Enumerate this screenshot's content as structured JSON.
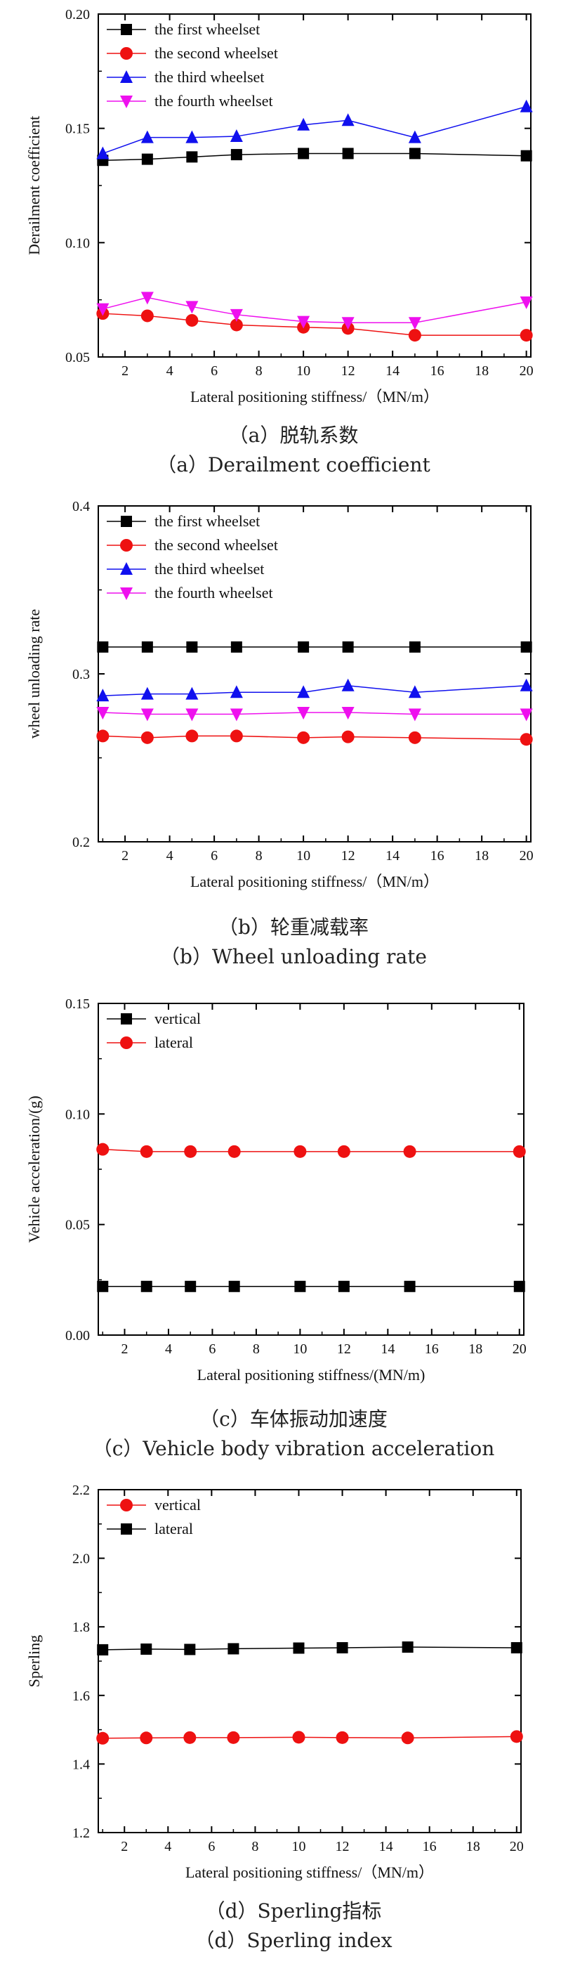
{
  "chart_data": [
    {
      "type": "line",
      "ylabel": "Derailment coefficient",
      "xlabel": "Lateral positioning stiffness/（MN/m）",
      "ylim": [
        0.05,
        0.2
      ],
      "xlim": [
        0.8,
        20.2
      ],
      "xticks": [
        2,
        4,
        6,
        8,
        10,
        12,
        14,
        16,
        18,
        20
      ],
      "yticks": [
        0.05,
        0.1,
        0.15,
        0.2
      ],
      "ytick_labels": [
        "0.05",
        "0.10",
        "0.15",
        "0.20"
      ],
      "x": [
        1,
        3,
        5,
        7,
        10,
        12,
        15,
        20
      ],
      "legend_position": "top-left",
      "series": [
        {
          "name": "the first wheelset",
          "color": "#000000",
          "marker": "square",
          "values": [
            0.136,
            0.1365,
            0.1375,
            0.1385,
            0.139,
            0.139,
            0.139,
            0.138
          ]
        },
        {
          "name": "the second wheelset",
          "color": "#ee1111",
          "marker": "circle",
          "values": [
            0.069,
            0.068,
            0.066,
            0.064,
            0.063,
            0.0625,
            0.0595,
            0.0595
          ]
        },
        {
          "name": "the third wheelset",
          "color": "#1010ee",
          "marker": "triangle-up",
          "values": [
            0.139,
            0.146,
            0.146,
            0.1465,
            0.1515,
            0.1535,
            0.146,
            0.1595
          ]
        },
        {
          "name": "the fourth wheelset",
          "color": "#ee10ee",
          "marker": "triangle-down",
          "values": [
            0.071,
            0.076,
            0.072,
            0.0685,
            0.0655,
            0.065,
            0.065,
            0.074
          ]
        }
      ],
      "caption_cn": "（a）脱轨系数",
      "caption_en": "（a）Derailment coefficient"
    },
    {
      "type": "line",
      "ylabel": "wheel unloading rate",
      "xlabel": "Lateral positioning stiffness/（MN/m）",
      "ylim": [
        0.2,
        0.4
      ],
      "xlim": [
        0.8,
        20.2
      ],
      "xticks": [
        2,
        4,
        6,
        8,
        10,
        12,
        14,
        16,
        18,
        20
      ],
      "yticks": [
        0.2,
        0.3,
        0.4
      ],
      "ytick_labels": [
        "0.2",
        "0.3",
        "0.4"
      ],
      "x": [
        1,
        3,
        5,
        7,
        10,
        12,
        15,
        20
      ],
      "legend_position": "top-left",
      "series": [
        {
          "name": "the first wheelset",
          "color": "#000000",
          "marker": "square",
          "values": [
            0.316,
            0.316,
            0.316,
            0.316,
            0.316,
            0.316,
            0.316,
            0.316
          ]
        },
        {
          "name": "the second wheelset",
          "color": "#ee1111",
          "marker": "circle",
          "values": [
            0.263,
            0.262,
            0.263,
            0.263,
            0.262,
            0.2625,
            0.262,
            0.261
          ]
        },
        {
          "name": "the third wheelset",
          "color": "#1010ee",
          "marker": "triangle-up",
          "values": [
            0.287,
            0.288,
            0.288,
            0.289,
            0.289,
            0.293,
            0.289,
            0.293
          ]
        },
        {
          "name": "the fourth wheelset",
          "color": "#ee10ee",
          "marker": "triangle-down",
          "values": [
            0.277,
            0.276,
            0.276,
            0.276,
            0.277,
            0.277,
            0.276,
            0.276
          ]
        }
      ],
      "caption_cn": "（b）轮重减载率",
      "caption_en": "（b）Wheel unloading rate"
    },
    {
      "type": "line",
      "ylabel": "Vehicle acceleration/(g)",
      "xlabel": "Lateral positioning stiffness/(MN/m)",
      "ylim": [
        0.0,
        0.15
      ],
      "xlim": [
        0.8,
        20.2
      ],
      "xticks": [
        2,
        4,
        6,
        8,
        10,
        12,
        14,
        16,
        18,
        20
      ],
      "yticks": [
        0.0,
        0.05,
        0.1,
        0.15
      ],
      "ytick_labels": [
        "0.00",
        "0.05",
        "0.10",
        "0.15"
      ],
      "x": [
        1,
        3,
        5,
        7,
        10,
        12,
        15,
        20
      ],
      "legend_position": "top-left",
      "series": [
        {
          "name": "vertical",
          "color": "#000000",
          "marker": "square",
          "values": [
            0.022,
            0.022,
            0.022,
            0.022,
            0.022,
            0.022,
            0.022,
            0.022
          ]
        },
        {
          "name": "lateral",
          "color": "#ee1111",
          "marker": "circle",
          "values": [
            0.084,
            0.083,
            0.083,
            0.083,
            0.083,
            0.083,
            0.083,
            0.083
          ]
        }
      ],
      "caption_cn": "（c）车体振动加速度",
      "caption_en": "（c）Vehicle body vibration acceleration"
    },
    {
      "type": "line",
      "ylabel": "Sperling",
      "xlabel": "Lateral positioning stiffness/（MN/m）",
      "ylim": [
        1.2,
        2.2
      ],
      "xlim": [
        0.8,
        20.2
      ],
      "xticks": [
        2,
        4,
        6,
        8,
        10,
        12,
        14,
        16,
        18,
        20
      ],
      "yticks": [
        1.2,
        1.4,
        1.6,
        1.8,
        2.0,
        2.2
      ],
      "ytick_labels": [
        "1.2",
        "1.4",
        "1.6",
        "1.8",
        "2.0",
        "2.2"
      ],
      "x": [
        1,
        3,
        5,
        7,
        10,
        12,
        15,
        20
      ],
      "legend_position": "top-left",
      "series": [
        {
          "name": "vertical",
          "color": "#ee1111",
          "marker": "circle",
          "values": [
            1.475,
            1.476,
            1.477,
            1.477,
            1.478,
            1.477,
            1.476,
            1.48
          ]
        },
        {
          "name": "lateral",
          "color": "#000000",
          "marker": "square",
          "values": [
            1.733,
            1.735,
            1.734,
            1.736,
            1.738,
            1.739,
            1.741,
            1.739
          ]
        }
      ],
      "caption_cn": "（d）Sperling指标",
      "caption_en": "（d）Sperling index"
    }
  ]
}
